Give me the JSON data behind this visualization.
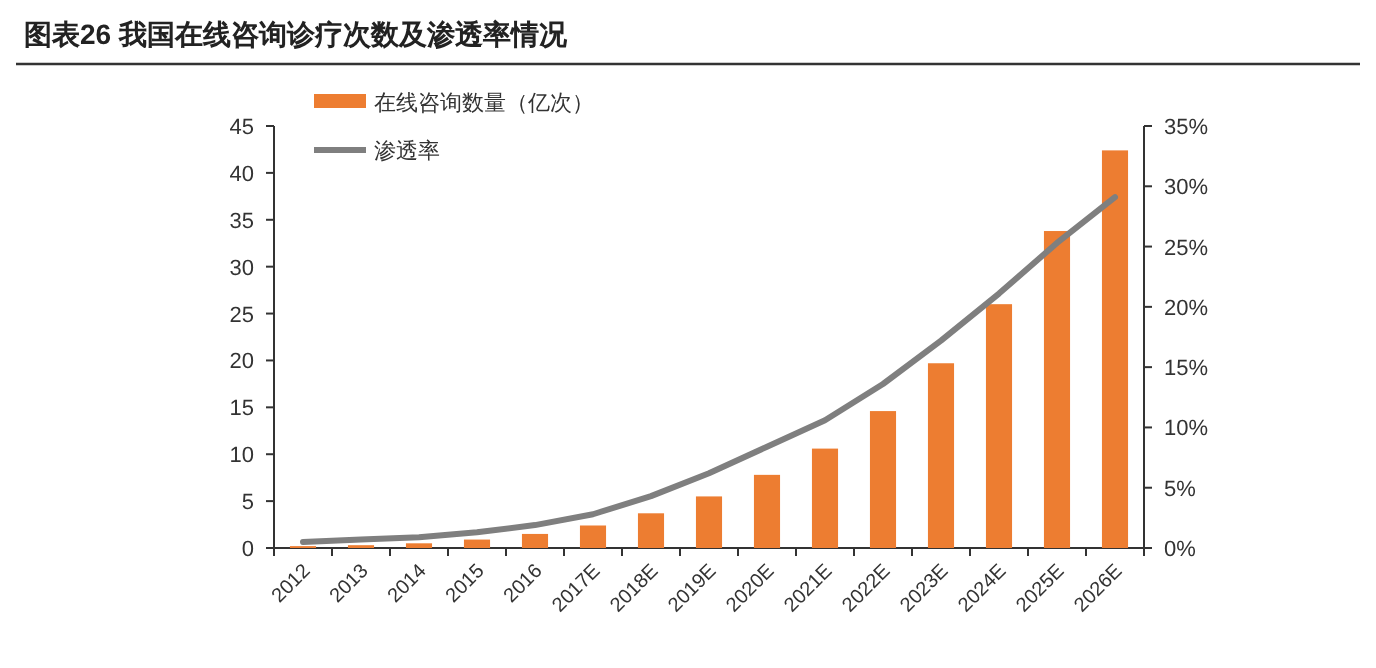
{
  "chart_data": {
    "type": "bar",
    "title": "图表26    我国在线咨询诊疗次数及渗透率情况",
    "categories": [
      "2012",
      "2013",
      "2014",
      "2015",
      "2016",
      "2017E",
      "2018E",
      "2019E",
      "2020E",
      "2021E",
      "2022E",
      "2023E",
      "2024E",
      "2025E",
      "2026E"
    ],
    "series": [
      {
        "name": "在线咨询数量（亿次）",
        "color": "#ed7d31",
        "values": [
          0.2,
          0.3,
          0.5,
          0.9,
          1.5,
          2.4,
          3.7,
          5.5,
          7.8,
          10.6,
          14.6,
          19.7,
          26.0,
          33.8,
          42.4
        ]
      },
      {
        "name": "渗透率",
        "type": "line",
        "axis": "y2",
        "color": "#7f7f7f",
        "values": [
          0.5,
          0.7,
          0.9,
          1.3,
          1.9,
          2.8,
          4.3,
          6.2,
          8.4,
          10.6,
          13.6,
          17.2,
          21.1,
          25.3,
          29.1
        ]
      }
    ],
    "ylim": [
      0,
      45
    ],
    "yticks": [
      0,
      5,
      10,
      15,
      20,
      25,
      30,
      35,
      40,
      45
    ],
    "y2lim": [
      0,
      35
    ],
    "y2ticks": [
      {
        "value": 0,
        "label": "0%"
      },
      {
        "value": 5,
        "label": "5%"
      },
      {
        "value": 10,
        "label": "10%"
      },
      {
        "value": 15,
        "label": "15%"
      },
      {
        "value": 20,
        "label": "20%"
      },
      {
        "value": 25,
        "label": "25%"
      },
      {
        "value": 30,
        "label": "30%"
      },
      {
        "value": 35,
        "label": "35%"
      }
    ],
    "legend": "top left",
    "grid": false
  }
}
